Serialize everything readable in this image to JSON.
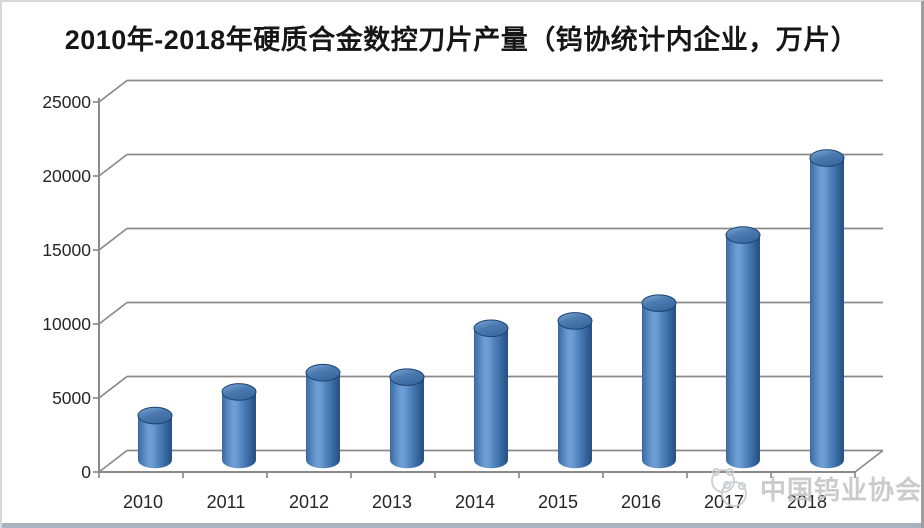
{
  "title": {
    "text": "2010年-2018年硬质合金数控刀片产量（钨协统计内企业，万片）"
  },
  "watermark": {
    "text": "中国钨业协会",
    "logo": "association-panda-logo",
    "color": "#c3c3c3"
  },
  "chart_data": {
    "type": "bar",
    "style_3d": "cylinder",
    "title": "2010年-2018年硬质合金数控刀片产量（钨协统计内企业，万片）",
    "unit": "万片",
    "categories": [
      "2010",
      "2011",
      "2012",
      "2013",
      "2014",
      "2015",
      "2016",
      "2017",
      "2018"
    ],
    "values": [
      3000,
      4600,
      5900,
      5600,
      8900,
      9400,
      10600,
      15200,
      20400
    ],
    "xlabel": "",
    "ylabel": "",
    "ylim": [
      0,
      25000
    ],
    "yticks": [
      0,
      5000,
      10000,
      15000,
      20000,
      25000
    ],
    "ytick_labels": [
      "0",
      "5000",
      "10000",
      "15000",
      "20000",
      "25000"
    ],
    "grid": true,
    "legend": false,
    "bar_color": "#4f81bd",
    "axis_color": "#8a8a8a",
    "label_color": "#262626"
  }
}
